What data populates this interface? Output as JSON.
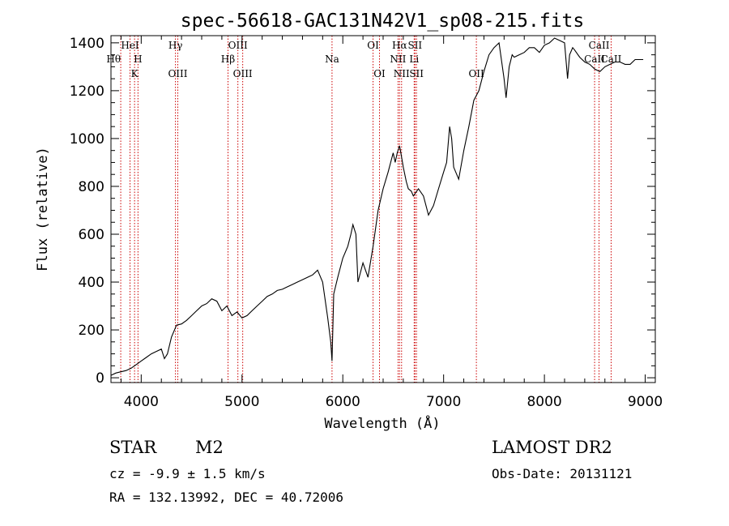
{
  "chart_data": {
    "type": "line",
    "title": "spec-56618-GAC131N42V1_sp08-215.fits",
    "xlabel": "Wavelength (Å)",
    "ylabel": "Flux (relative)",
    "xlim": [
      3700,
      9100
    ],
    "ylim": [
      -20,
      1430
    ],
    "xticks": [
      4000,
      5000,
      6000,
      7000,
      8000,
      9000
    ],
    "yticks": [
      0,
      200,
      400,
      600,
      800,
      1000,
      1200,
      1400
    ],
    "grid": false,
    "spectrum": {
      "x": [
        3700,
        3750,
        3800,
        3850,
        3900,
        3950,
        4000,
        4050,
        4100,
        4150,
        4200,
        4230,
        4260,
        4300,
        4350,
        4400,
        4450,
        4500,
        4550,
        4600,
        4650,
        4700,
        4750,
        4800,
        4850,
        4900,
        4950,
        5000,
        5050,
        5100,
        5150,
        5200,
        5250,
        5300,
        5350,
        5400,
        5450,
        5500,
        5550,
        5600,
        5650,
        5700,
        5750,
        5800,
        5850,
        5880,
        5893,
        5910,
        5950,
        6000,
        6050,
        6080,
        6100,
        6130,
        6150,
        6200,
        6250,
        6300,
        6350,
        6400,
        6450,
        6500,
        6520,
        6540,
        6563,
        6580,
        6600,
        6630,
        6650,
        6680,
        6700,
        6750,
        6800,
        6850,
        6900,
        6950,
        7000,
        7030,
        7060,
        7080,
        7100,
        7150,
        7200,
        7250,
        7300,
        7350,
        7400,
        7450,
        7500,
        7550,
        7600,
        7620,
        7650,
        7680,
        7700,
        7750,
        7800,
        7850,
        7900,
        7950,
        8000,
        8050,
        8100,
        8150,
        8200,
        8230,
        8250,
        8280,
        8300,
        8350,
        8400,
        8450,
        8500,
        8550,
        8600,
        8650,
        8700,
        8750,
        8800,
        8850,
        8900,
        8950,
        8980
      ],
      "y": [
        10,
        20,
        25,
        30,
        40,
        55,
        70,
        85,
        100,
        110,
        120,
        80,
        100,
        170,
        220,
        225,
        240,
        260,
        280,
        300,
        310,
        330,
        320,
        280,
        300,
        260,
        275,
        250,
        260,
        280,
        300,
        320,
        340,
        350,
        365,
        370,
        380,
        390,
        400,
        410,
        420,
        430,
        450,
        400,
        250,
        150,
        70,
        350,
        420,
        500,
        550,
        600,
        640,
        600,
        400,
        480,
        420,
        550,
        700,
        790,
        860,
        940,
        900,
        940,
        970,
        930,
        880,
        820,
        790,
        780,
        760,
        790,
        760,
        680,
        720,
        790,
        860,
        900,
        1050,
        1000,
        880,
        830,
        950,
        1050,
        1160,
        1200,
        1280,
        1350,
        1380,
        1400,
        1250,
        1170,
        1300,
        1350,
        1340,
        1350,
        1360,
        1380,
        1380,
        1360,
        1390,
        1400,
        1420,
        1410,
        1400,
        1250,
        1350,
        1380,
        1370,
        1340,
        1320,
        1310,
        1290,
        1280,
        1300,
        1310,
        1320,
        1320,
        1310,
        1310,
        1330,
        1330,
        1330
      ]
    },
    "lines": [
      {
        "label": "Hθ",
        "x": 3797,
        "row": 2,
        "anchor": "end"
      },
      {
        "label": "HeI",
        "x": 3889,
        "row": 1,
        "anchor": "middle"
      },
      {
        "label": "K",
        "x": 3934,
        "row": 3,
        "anchor": "middle"
      },
      {
        "label": "H",
        "x": 3968,
        "row": 2,
        "anchor": "middle"
      },
      {
        "label": "Hγ",
        "x": 4340,
        "row": 1,
        "anchor": "middle"
      },
      {
        "label": "OIII",
        "x": 4363,
        "row": 3,
        "anchor": "middle"
      },
      {
        "label": "Hβ",
        "x": 4861,
        "row": 2,
        "anchor": "middle"
      },
      {
        "label": "OIII",
        "x": 4959,
        "row": 1,
        "anchor": "middle"
      },
      {
        "label": "OIII",
        "x": 5007,
        "row": 3,
        "anchor": "middle"
      },
      {
        "label": "Na",
        "x": 5893,
        "row": 2,
        "anchor": "middle"
      },
      {
        "label": "OI",
        "x": 6300,
        "row": 1,
        "anchor": "middle"
      },
      {
        "label": "OI",
        "x": 6364,
        "row": 3,
        "anchor": "middle"
      },
      {
        "label": "Hα",
        "x": 6563,
        "row": 1,
        "anchor": "middle"
      },
      {
        "label": "NII",
        "x": 6548,
        "row": 2,
        "anchor": "middle"
      },
      {
        "label": "NII",
        "x": 6583,
        "row": 3,
        "anchor": "middle"
      },
      {
        "label": "SII",
        "x": 6716,
        "row": 1,
        "anchor": "middle"
      },
      {
        "label": "Li",
        "x": 6708,
        "row": 2,
        "anchor": "middle"
      },
      {
        "label": "SII",
        "x": 6731,
        "row": 3,
        "anchor": "middle"
      },
      {
        "label": "OII",
        "x": 7325,
        "row": 3,
        "anchor": "middle"
      },
      {
        "label": "CaII",
        "x": 8542,
        "row": 1,
        "anchor": "middle"
      },
      {
        "label": "CaII",
        "x": 8498,
        "row": 2,
        "anchor": "middle"
      },
      {
        "label": "CaII",
        "x": 8662,
        "row": 2,
        "anchor": "middle"
      }
    ],
    "colors": {
      "spectrum": "#000000",
      "lines": "#cc0000",
      "text": "#000000"
    }
  },
  "info": {
    "object_class": "STAR",
    "subclass": "M2",
    "survey": "LAMOST DR2",
    "redshift": "cz = -9.9 ± 1.5 km/s",
    "obs_date": "Obs-Date: 20131121",
    "coords": "RA = 132.13992, DEC =  40.72006"
  }
}
